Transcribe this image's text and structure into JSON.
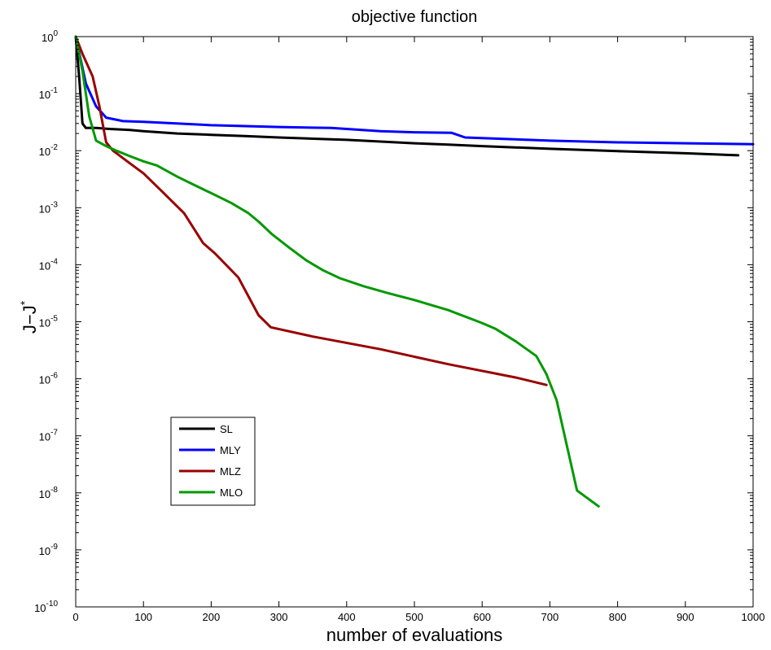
{
  "chart_data": {
    "type": "line",
    "title": "objective function",
    "xlabel": "number of evaluations",
    "ylabel": "J−J",
    "ylabel_superscript": "*",
    "xscale": "linear",
    "yscale": "log",
    "xlim": [
      0,
      1000
    ],
    "ylim": [
      1e-10,
      1
    ],
    "x_ticks": [
      0,
      100,
      200,
      300,
      400,
      500,
      600,
      700,
      800,
      900,
      1000
    ],
    "y_tick_exponents": [
      -10,
      -9,
      -8,
      -7,
      -6,
      -5,
      -4,
      -3,
      -2,
      -1,
      0
    ],
    "y_tick_base": "10",
    "grid": false,
    "legend_position": "lower-left",
    "series": [
      {
        "name": "SL",
        "color": "#000000",
        "x": [
          0,
          5,
          10,
          15,
          30,
          50,
          80,
          100,
          150,
          200,
          250,
          300,
          400,
          500,
          550,
          600,
          700,
          800,
          900,
          978
        ],
        "y": [
          1.0,
          0.2,
          0.03,
          0.025,
          0.025,
          0.024,
          0.023,
          0.022,
          0.02,
          0.019,
          0.018,
          0.017,
          0.0155,
          0.0135,
          0.0128,
          0.012,
          0.0108,
          0.0098,
          0.009,
          0.0083
        ]
      },
      {
        "name": "MLY",
        "color": "#0000ff",
        "x": [
          0,
          15,
          30,
          45,
          70,
          100,
          200,
          300,
          377,
          450,
          500,
          555,
          575,
          700,
          800,
          900,
          1000
        ],
        "y": [
          1.0,
          0.15,
          0.06,
          0.038,
          0.033,
          0.032,
          0.028,
          0.026,
          0.025,
          0.022,
          0.021,
          0.0205,
          0.017,
          0.015,
          0.014,
          0.0135,
          0.013
        ]
      },
      {
        "name": "MLZ",
        "color": "#990000",
        "x": [
          0,
          10,
          25,
          35,
          45,
          55,
          80,
          100,
          130,
          160,
          188,
          205,
          240,
          270,
          288,
          350,
          450,
          550,
          650,
          695
        ],
        "y": [
          1.0,
          0.5,
          0.2,
          0.06,
          0.014,
          0.01,
          0.006,
          0.004,
          0.0018,
          0.0008,
          0.00024,
          0.00016,
          6e-05,
          1.3e-05,
          8e-06,
          5.5e-06,
          3.3e-06,
          1.8e-06,
          1.05e-06,
          7.8e-07
        ]
      },
      {
        "name": "MLO",
        "color": "#009900",
        "x": [
          0,
          10,
          20,
          30,
          45,
          60,
          80,
          100,
          120,
          150,
          175,
          200,
          230,
          255,
          270,
          290,
          315,
          340,
          365,
          390,
          425,
          460,
          500,
          550,
          600,
          620,
          650,
          680,
          695,
          710,
          740,
          772
        ],
        "y": [
          1.0,
          0.25,
          0.04,
          0.015,
          0.012,
          0.01,
          0.008,
          0.0065,
          0.0055,
          0.0035,
          0.0025,
          0.0018,
          0.0012,
          0.0008,
          0.00057,
          0.00034,
          0.0002,
          0.00012,
          8e-05,
          5.8e-05,
          4.2e-05,
          3.2e-05,
          2.4e-05,
          1.6e-05,
          9.5e-06,
          7.5e-06,
          4.5e-06,
          2.5e-06,
          1.2e-06,
          4.2e-07,
          1.1e-08,
          5.8e-09
        ]
      }
    ]
  }
}
